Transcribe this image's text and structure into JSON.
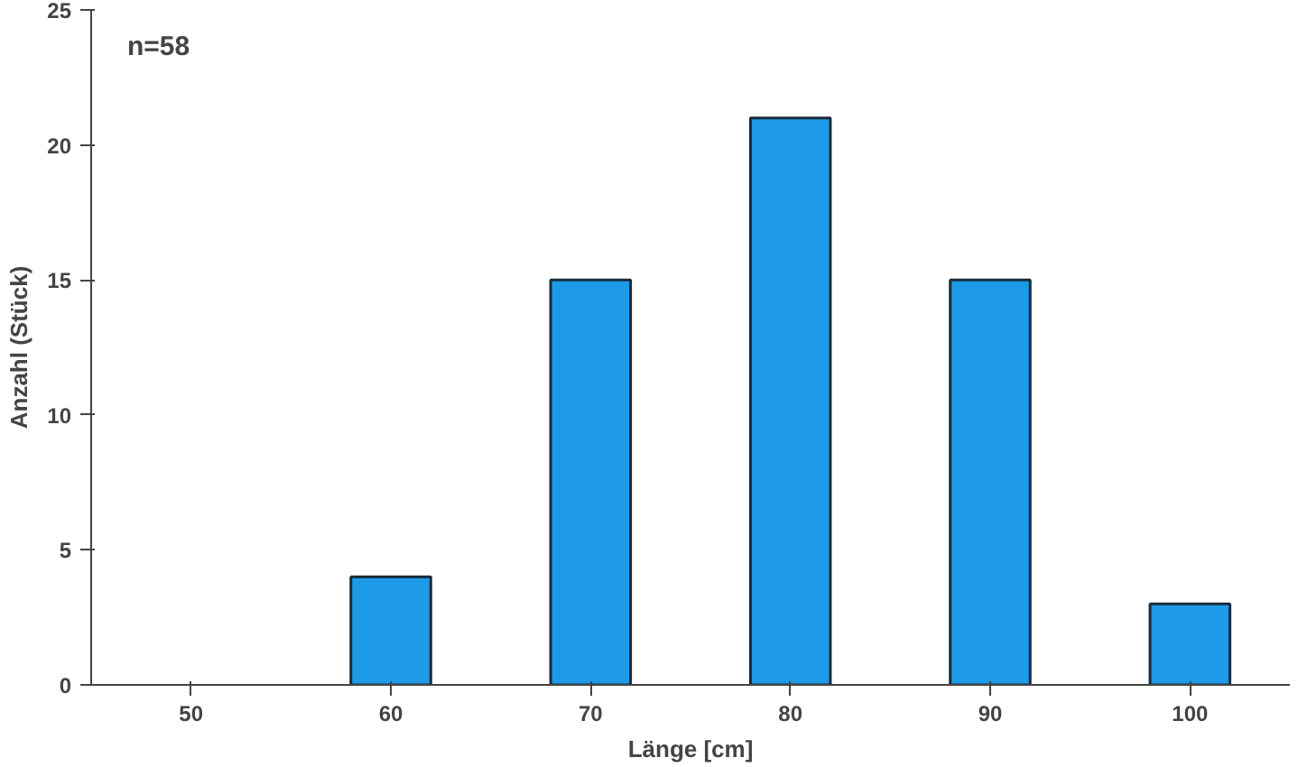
{
  "chart_data": {
    "type": "bar",
    "xlabel": "Länge [cm]",
    "ylabel": "Anzahl (Stück)",
    "categories": [
      "50",
      "60",
      "70",
      "80",
      "90",
      "100"
    ],
    "values": [
      0,
      4,
      15,
      21,
      15,
      3
    ],
    "color": "#1e9be8",
    "ylim": [
      0,
      25
    ],
    "yticks": [
      0,
      5,
      10,
      15,
      20,
      25
    ],
    "grid": false,
    "annotations": [
      "n=58"
    ]
  }
}
